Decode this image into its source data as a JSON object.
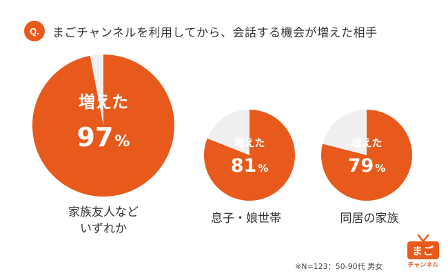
{
  "header": {
    "badge": "Q.",
    "question": "まごチャンネルを利用してから、会話する機会が増えた相手"
  },
  "chart_data": [
    {
      "type": "pie",
      "category": "家族友人など\nいずれか",
      "slice_label": "増えた",
      "value": 97,
      "value_text": "97",
      "unit": "%"
    },
    {
      "type": "pie",
      "category": "息子・娘世帯",
      "slice_label": "増えた",
      "value": 81,
      "value_text": "81",
      "unit": "%"
    },
    {
      "type": "pie",
      "category": "同居の家族",
      "slice_label": "増えた",
      "value": 79,
      "value_text": "79",
      "unit": "%"
    }
  ],
  "colors": {
    "accent": "#e85a1b",
    "remainder": "#efefef"
  },
  "footnote": "※N=123：50-90代 男女",
  "logo": {
    "main": "まご",
    "sub": "チャンネル"
  }
}
